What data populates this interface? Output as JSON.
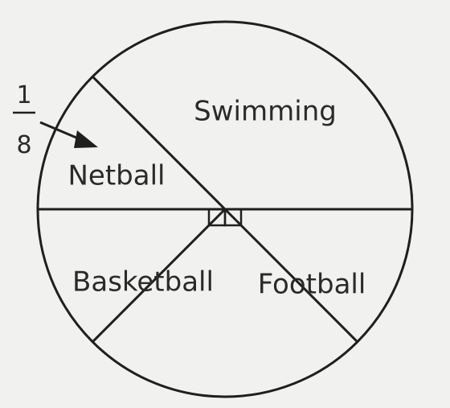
{
  "chart_data": {
    "type": "pie",
    "categories": [
      "Swimming",
      "Football",
      "Basketball",
      "Netball"
    ],
    "values": [
      0.375,
      0.25,
      0.25,
      0.125
    ],
    "annotations": [
      {
        "target": "Netball",
        "numerator": "1",
        "denominator": "8"
      }
    ],
    "colors": {
      "line": "#1f1f1f",
      "background": "#f1f1ef"
    }
  }
}
